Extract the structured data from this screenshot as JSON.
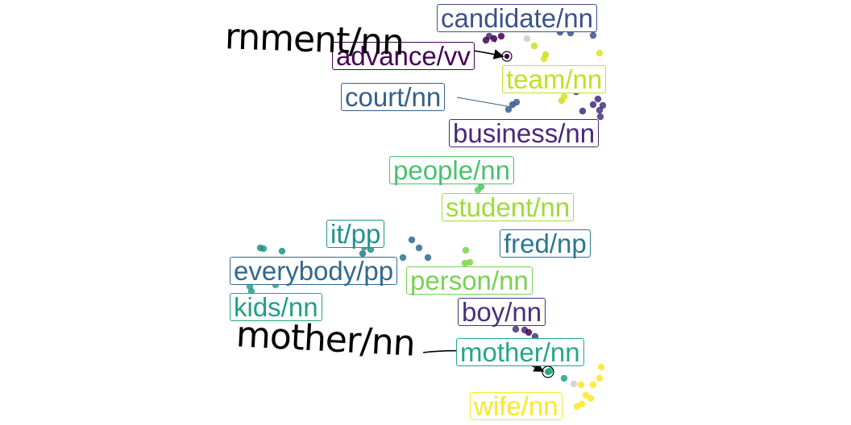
{
  "chart_data": {
    "type": "scatter",
    "title": "",
    "xlabel": "",
    "ylabel": "",
    "grid": false,
    "legend": "none",
    "labels": [
      {
        "text": "candidate/nn",
        "color": "#3b528b"
      },
      {
        "text": "advance/vv",
        "color": "#440154"
      },
      {
        "text": "team/nn",
        "color": "#c2df23"
      },
      {
        "text": "court/nn",
        "color": "#355f8d"
      },
      {
        "text": "business/nn",
        "color": "#482878"
      },
      {
        "text": "people/nn",
        "color": "#4ac16d"
      },
      {
        "text": "student/nn",
        "color": "#a0da39"
      },
      {
        "text": "it/pp",
        "color": "#21918c"
      },
      {
        "text": "fred/np",
        "color": "#2a788e"
      },
      {
        "text": "everybody/pp",
        "color": "#31688e"
      },
      {
        "text": "person/nn",
        "color": "#7ad151"
      },
      {
        "text": "kids/nn",
        "color": "#1fa187"
      },
      {
        "text": "boy/nn",
        "color": "#46327e"
      },
      {
        "text": "mother/nn",
        "color": "#22a884"
      },
      {
        "text": "wife/nn",
        "color": "#fde725"
      }
    ],
    "handwritten": [
      {
        "text": "rnment/nn",
        "target": "advance/vv"
      },
      {
        "text": "mother/nn",
        "target": "mother/nn"
      }
    ]
  }
}
